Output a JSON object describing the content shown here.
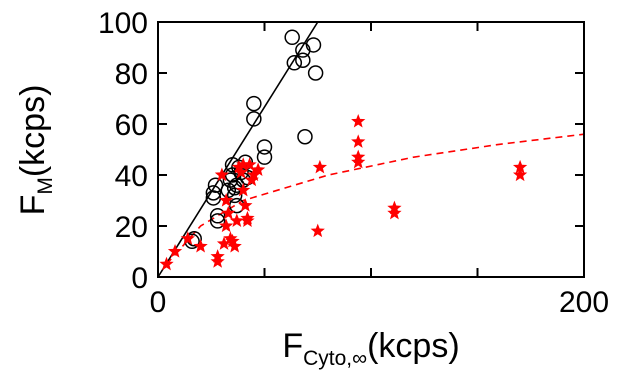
{
  "chart_data": {
    "type": "scatter",
    "xlabel": {
      "main": "F",
      "sub": "Cyto,∞",
      "unit": "(kcps)"
    },
    "ylabel": {
      "main": "F",
      "sub": "M",
      "unit": "(kcps)"
    },
    "xlim": [
      0,
      200
    ],
    "ylim": [
      0,
      100
    ],
    "x_ticks": [
      0,
      200
    ],
    "x_tick_labels": [
      "0",
      "200"
    ],
    "y_ticks": [
      0,
      20,
      40,
      60,
      80,
      100
    ],
    "y_tick_labels": [
      "0",
      "20",
      "40",
      "60",
      "80",
      "100"
    ],
    "grid": false,
    "legend": "none",
    "series": [
      {
        "marker": "open-circle",
        "color": "#000000",
        "points": [
          [
            17,
            15
          ],
          [
            16,
            14
          ],
          [
            26,
            33
          ],
          [
            26,
            31
          ],
          [
            27,
            36
          ],
          [
            28,
            24
          ],
          [
            28,
            22
          ],
          [
            33,
            34
          ],
          [
            34,
            38
          ],
          [
            35,
            44
          ],
          [
            35,
            40
          ],
          [
            36,
            35
          ],
          [
            36,
            32
          ],
          [
            37,
            36
          ],
          [
            37,
            28
          ],
          [
            38,
            43
          ],
          [
            39,
            41
          ],
          [
            40,
            38
          ],
          [
            42,
            39
          ],
          [
            41,
            45
          ],
          [
            45,
            68
          ],
          [
            45,
            62
          ],
          [
            50,
            51
          ],
          [
            50,
            47
          ],
          [
            63,
            94
          ],
          [
            64,
            84
          ],
          [
            68,
            89
          ],
          [
            68,
            85
          ],
          [
            69,
            55
          ],
          [
            73,
            91
          ],
          [
            74,
            80
          ]
        ]
      },
      {
        "marker": "star",
        "color": "#ff0000",
        "points": [
          [
            4,
            5
          ],
          [
            8,
            10
          ],
          [
            14,
            15
          ],
          [
            20,
            12
          ],
          [
            28,
            8
          ],
          [
            28,
            6
          ],
          [
            30,
            40
          ],
          [
            31,
            13
          ],
          [
            32,
            30
          ],
          [
            32,
            20
          ],
          [
            33,
            25
          ],
          [
            34,
            15
          ],
          [
            35,
            14
          ],
          [
            36,
            12
          ],
          [
            37,
            22
          ],
          [
            38,
            43
          ],
          [
            39,
            41
          ],
          [
            40,
            44
          ],
          [
            40,
            34
          ],
          [
            41,
            28
          ],
          [
            42,
            23
          ],
          [
            42,
            22
          ],
          [
            43,
            44
          ],
          [
            44,
            38
          ],
          [
            45,
            40
          ],
          [
            47,
            42
          ],
          [
            75,
            18
          ],
          [
            76,
            43
          ],
          [
            94,
            61
          ],
          [
            94,
            53
          ],
          [
            94,
            47
          ],
          [
            94,
            45
          ],
          [
            111,
            27
          ],
          [
            111,
            25
          ],
          [
            170,
            43
          ],
          [
            170,
            40
          ]
        ]
      }
    ],
    "fits": [
      {
        "style": "solid",
        "color": "#000000",
        "x": [
          0,
          75
        ],
        "y": [
          0,
          100
        ]
      },
      {
        "style": "dashed",
        "color": "#ff0000",
        "model": "hyperbolic",
        "x_points": [
          4,
          20,
          40,
          80,
          120,
          160,
          200
        ],
        "y_points": [
          5,
          20,
          30,
          40,
          47,
          52,
          56
        ]
      }
    ]
  }
}
